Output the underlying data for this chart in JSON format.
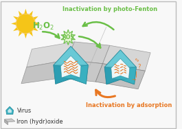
{
  "bg_color": "#f8f8f8",
  "border_color": "#bbbbbb",
  "green_color": "#6abf47",
  "orange_color": "#e87722",
  "sun_yellow": "#f5c518",
  "sun_orange": "#f5a623",
  "teal_color": "#3ab0c0",
  "teal_dark": "#2a8a9a",
  "teal_light": "#7dd4e0",
  "iron_oxide_color": "#c8c8c8",
  "iron_oxide_dark": "#999999",
  "text_photo_fenton": "Inactivation by photo-Fenton",
  "text_adsorption": "Inactivation by adsorption",
  "text_h2o2": "H$_2$O$_2$",
  "text_ros": "ROS",
  "text_virus": "Virus",
  "text_iron": "Iron (hydr)oxide",
  "fig_width": 2.65,
  "fig_height": 1.88,
  "dpi": 100
}
